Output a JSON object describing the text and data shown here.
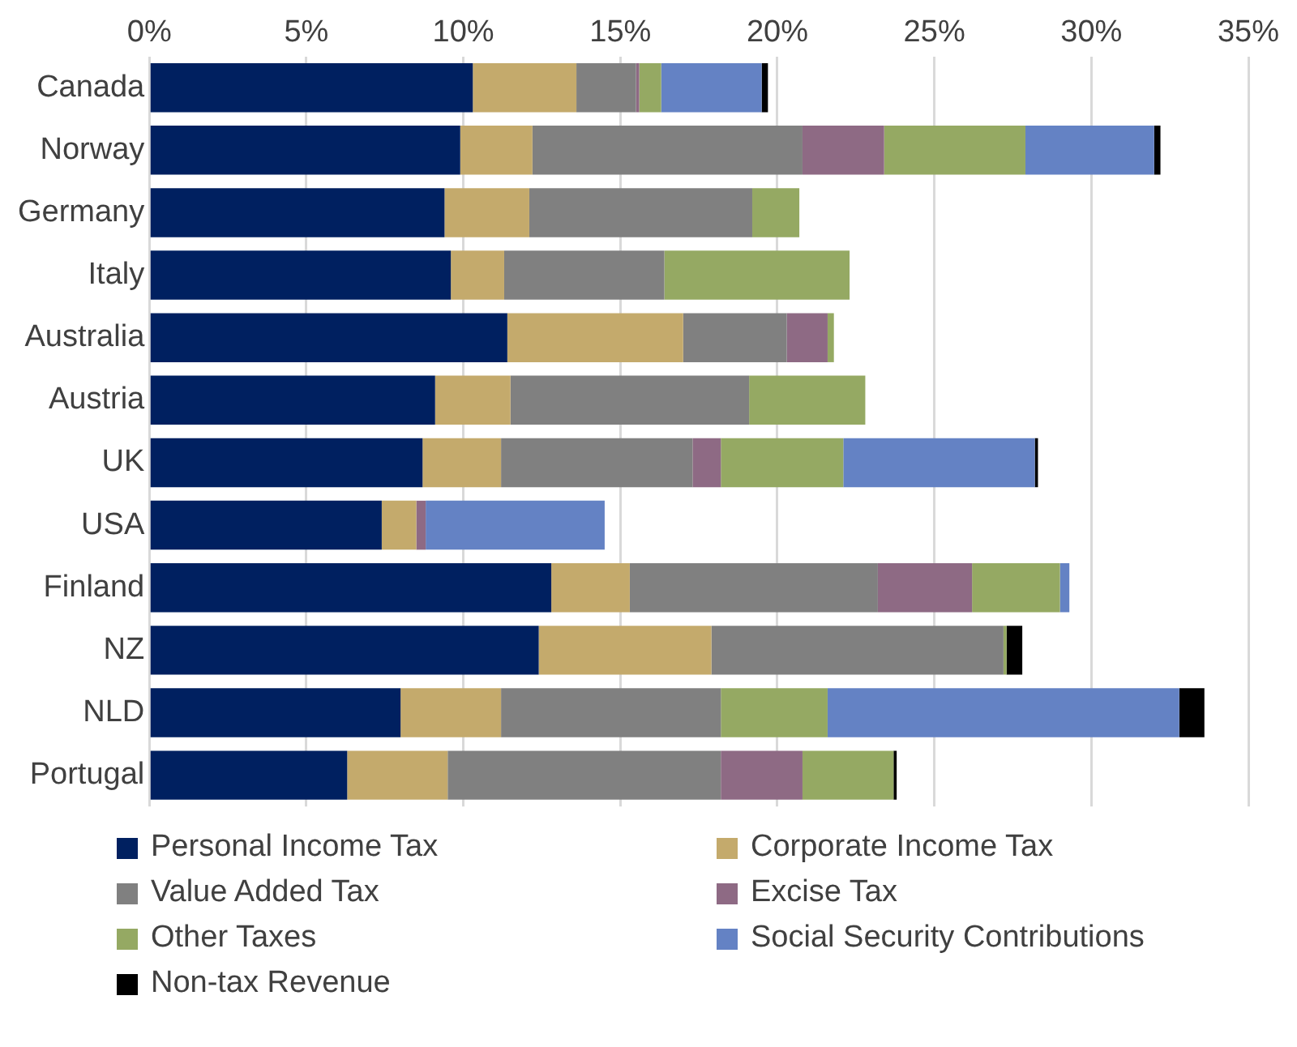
{
  "chart_data": {
    "type": "bar",
    "orientation": "horizontal",
    "stacked": true,
    "categories": [
      "Canada",
      "Norway",
      "Germany",
      "Italy",
      "Australia",
      "Austria",
      "UK",
      "USA",
      "Finland",
      "NZ",
      "NLD",
      "Portugal"
    ],
    "series": [
      {
        "name": "Personal Income Tax",
        "color": "#002060",
        "values": [
          10.3,
          9.9,
          9.4,
          9.6,
          11.4,
          9.1,
          8.7,
          7.4,
          12.8,
          12.4,
          8.0,
          6.3
        ]
      },
      {
        "name": "Corporate Income Tax",
        "color": "#c4aa6c",
        "values": [
          3.3,
          2.3,
          2.7,
          1.7,
          5.6,
          2.4,
          2.5,
          1.1,
          2.5,
          5.5,
          3.2,
          3.2
        ]
      },
      {
        "name": "Value Added Tax",
        "color": "#808080",
        "values": [
          1.9,
          8.6,
          7.1,
          5.1,
          3.3,
          7.6,
          6.1,
          0,
          7.9,
          9.3,
          7.0,
          8.7
        ]
      },
      {
        "name": "Excise Tax",
        "color": "#8e6a84",
        "values": [
          0.1,
          2.6,
          0,
          0,
          1.3,
          0,
          0.9,
          0.3,
          3.0,
          0,
          0,
          2.6
        ]
      },
      {
        "name": "Other Taxes",
        "color": "#95a963",
        "values": [
          0.7,
          4.5,
          1.5,
          5.9,
          0.2,
          3.7,
          3.9,
          0,
          2.8,
          0.1,
          3.4,
          2.9
        ]
      },
      {
        "name": "Social Security Contributions",
        "color": "#6482c4",
        "values": [
          3.2,
          4.1,
          0,
          0,
          0,
          0,
          6.1,
          5.7,
          0.3,
          0,
          11.2,
          0
        ]
      },
      {
        "name": "Non-tax Revenue",
        "color": "#000000",
        "values": [
          0.2,
          0.2,
          0,
          0,
          0,
          0,
          0.1,
          0,
          0,
          0.5,
          0.8,
          0.1
        ]
      }
    ],
    "xlim": [
      0,
      35
    ],
    "xticks": [
      {
        "value": 0,
        "label": "0%"
      },
      {
        "value": 5,
        "label": "5%"
      },
      {
        "value": 10,
        "label": "10%"
      },
      {
        "value": 15,
        "label": "15%"
      },
      {
        "value": 20,
        "label": "20%"
      },
      {
        "value": 25,
        "label": "25%"
      },
      {
        "value": 30,
        "label": "30%"
      },
      {
        "value": 35,
        "label": "35%"
      }
    ],
    "grid": "x",
    "legend": "bottom"
  }
}
